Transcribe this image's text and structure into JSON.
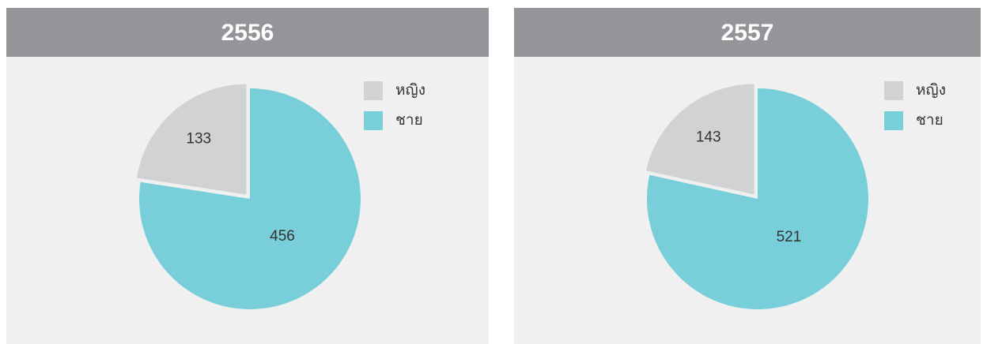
{
  "chart_data": [
    {
      "type": "pie",
      "title": "2556",
      "categories": [
        "หญิง",
        "ชาย"
      ],
      "values": [
        133,
        456
      ],
      "colors": [
        "#d1d2d4",
        "#78cfd9"
      ]
    },
    {
      "type": "pie",
      "title": "2557",
      "categories": [
        "หญิง",
        "ชาย"
      ],
      "values": [
        143,
        521
      ],
      "colors": [
        "#d1d2d4",
        "#78cfd9"
      ]
    }
  ]
}
